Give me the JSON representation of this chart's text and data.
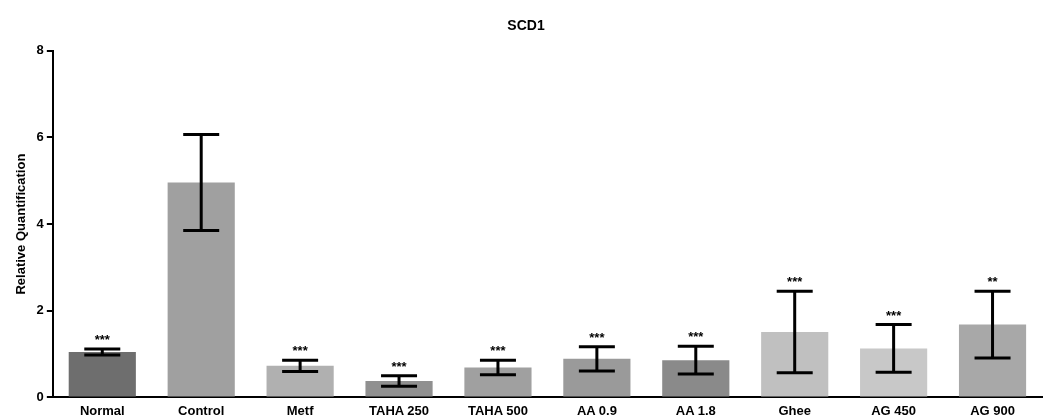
{
  "chart_data": {
    "type": "bar",
    "title": "SCD1",
    "ylabel": "Relative Quantification",
    "categories": [
      "Normal",
      "Control",
      "Metf",
      "TAHA 250",
      "TAHA 500",
      "AA 0.9",
      "AA 1.8",
      "Ghee",
      "AG 450",
      "AG 900"
    ],
    "values": [
      1.05,
      4.96,
      0.73,
      0.38,
      0.69,
      0.89,
      0.86,
      1.51,
      1.13,
      1.68
    ],
    "errors": [
      0.07,
      1.11,
      0.13,
      0.12,
      0.17,
      0.28,
      0.32,
      0.94,
      0.55,
      0.77
    ],
    "colors": [
      "#6e6e6e",
      "#a0a0a0",
      "#b0b0b0",
      "#909090",
      "#a0a0a0",
      "#9a9a9a",
      "#8a8a8a",
      "#c0c0c0",
      "#c8c8c8",
      "#a8a8a8"
    ],
    "ylim": [
      0,
      8
    ],
    "yticks": [
      0,
      2,
      4,
      6,
      8
    ],
    "grid": false,
    "legend": false,
    "annotations": [
      {
        "text": "***",
        "x": "Normal",
        "y": 1.12
      },
      {
        "text": "***",
        "x": "Metf",
        "y": 0.86
      },
      {
        "text": "***",
        "x": "TAHA 250",
        "y": 0.5
      },
      {
        "text": "***",
        "x": "TAHA 500",
        "y": 0.86
      },
      {
        "text": "***",
        "x": "AA 0.9",
        "y": 1.17
      },
      {
        "text": "***",
        "x": "AA 1.8",
        "y": 1.18
      },
      {
        "text": "***",
        "x": "Ghee",
        "y": 2.45
      },
      {
        "text": "***",
        "x": "AG 450",
        "y": 1.68
      },
      {
        "text": "**",
        "x": "AG 900",
        "y": 2.45
      }
    ]
  }
}
